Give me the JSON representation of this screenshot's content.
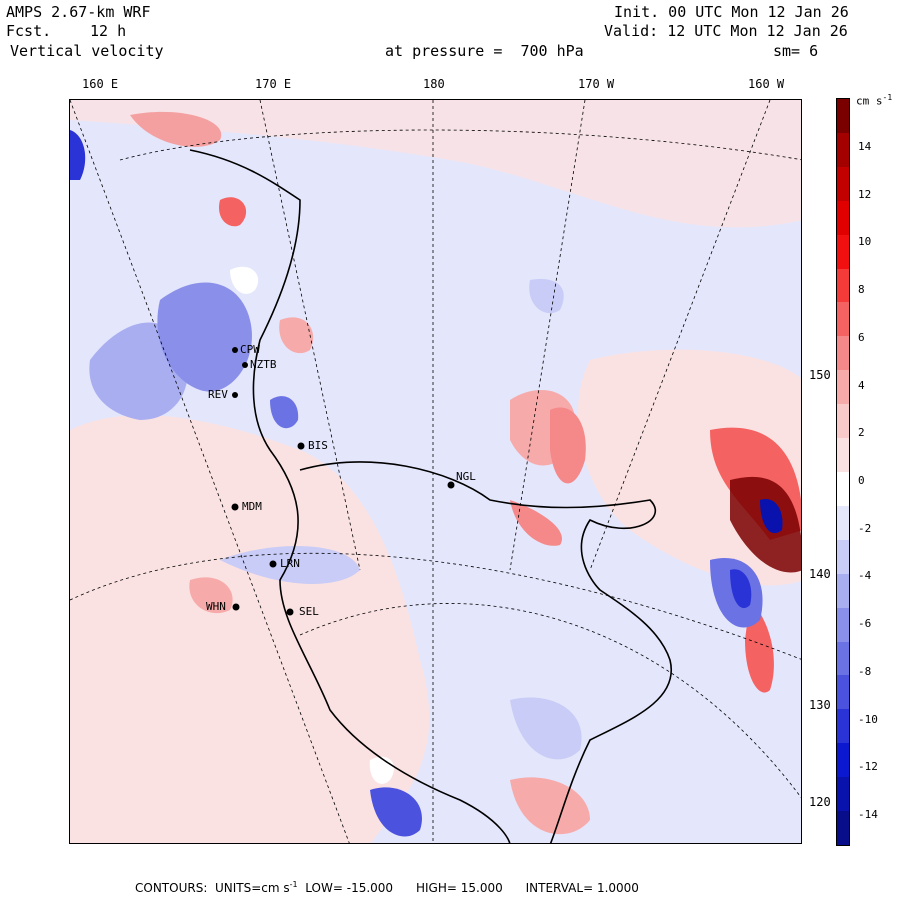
{
  "header": {
    "model": "AMPS 2.67-km WRF",
    "fcst_label": "Fcst.",
    "fcst_value": "12 h",
    "field": "Vertical velocity",
    "init": "Init. 00 UTC Mon 12 Jan 26",
    "valid": "Valid: 12 UTC Mon 12 Jan 26",
    "pressure": "at pressure =  700 hPa",
    "smooth": "sm= 6"
  },
  "map": {
    "top_longitudes": [
      "160 E",
      "170 E",
      "180",
      "170 W",
      "160 W"
    ],
    "right_longitudes": [
      "150 W",
      "140 W",
      "130 W",
      "120 W"
    ],
    "stations": [
      {
        "id": "CPW"
      },
      {
        "id": "NZTB"
      },
      {
        "id": "REV"
      },
      {
        "id": "BIS"
      },
      {
        "id": "MDM"
      },
      {
        "id": "LRN"
      },
      {
        "id": "WHN"
      },
      {
        "id": "SEL"
      },
      {
        "id": "NGL"
      }
    ]
  },
  "colorbar": {
    "unit": "cm s",
    "unit_exp": "-1",
    "labels": [
      "14",
      "12",
      "10",
      "8",
      "6",
      "4",
      "2",
      "0",
      "-2",
      "-4",
      "-6",
      "-8",
      "-10",
      "-12",
      "-14"
    ],
    "colors": [
      "#7a0000",
      "#a30000",
      "#c20000",
      "#e00000",
      "#f20f0f",
      "#f53a3a",
      "#f46262",
      "#f58888",
      "#f7aaaa",
      "#f9caca",
      "#fbe2e2",
      "#ffffff",
      "#e5e7fb",
      "#c9ccf6",
      "#a9aef1",
      "#8a90ea",
      "#6b72e4",
      "#4b52dd",
      "#2a33d6",
      "#0c18cf",
      "#0a12ad",
      "#080d8a"
    ]
  },
  "footer": {
    "contours_label": "CONTOURS:",
    "units_label": "UNITS=cm s",
    "units_exp": "-1",
    "low_label": "LOW=",
    "low_value": "-15.000",
    "high_label": "HIGH=",
    "high_value": "15.000",
    "interval_label": "INTERVAL=",
    "interval_value": "1.0000"
  }
}
